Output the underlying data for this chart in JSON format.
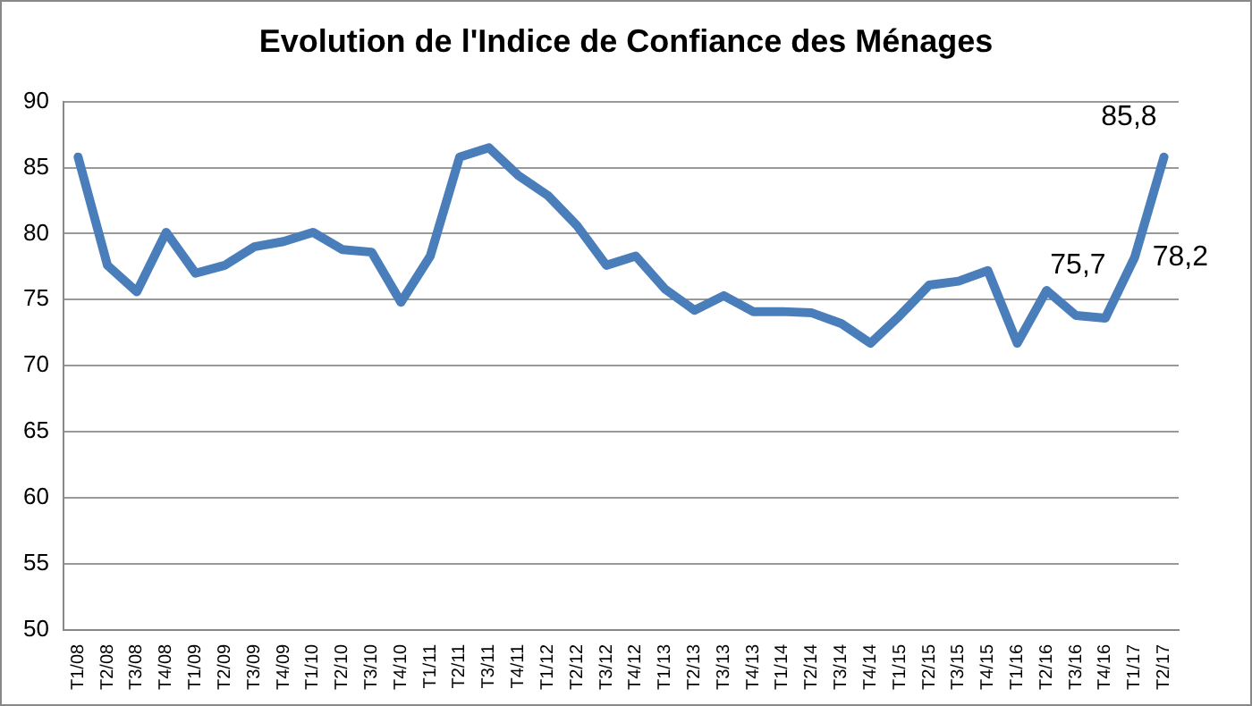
{
  "chart_data": {
    "type": "line",
    "title": "Evolution de l'Indice de Confiance des Ménages",
    "categories": [
      "T1/08",
      "T2/08",
      "T3/08",
      "T4/08",
      "T1/09",
      "T2/09",
      "T3/09",
      "T4/09",
      "T1/10",
      "T2/10",
      "T3/10",
      "T4/10",
      "T1/11",
      "T2/11",
      "T3/11",
      "T4/11",
      "T1/12",
      "T2/12",
      "T3/12",
      "T4/12",
      "T1/13",
      "T2/13",
      "T3/13",
      "T4/13",
      "T1/14",
      "T2/14",
      "T3/14",
      "T4/14",
      "T1/15",
      "T2/15",
      "T3/15",
      "T4/15",
      "T1/16",
      "T2/16",
      "T3/16",
      "T4/16",
      "T1/17",
      "T2/17"
    ],
    "values": [
      85.8,
      77.6,
      75.6,
      80.1,
      77.0,
      77.6,
      79.0,
      79.4,
      80.1,
      78.8,
      78.6,
      74.8,
      78.3,
      85.8,
      86.5,
      84.4,
      82.9,
      80.6,
      77.6,
      78.3,
      75.8,
      74.2,
      75.3,
      74.1,
      74.1,
      74.0,
      73.2,
      71.7,
      73.8,
      76.1,
      76.4,
      77.2,
      71.7,
      75.7,
      73.8,
      73.6,
      78.2,
      85.8
    ],
    "value_labels": [
      null,
      null,
      null,
      null,
      null,
      null,
      null,
      null,
      null,
      null,
      null,
      null,
      null,
      null,
      null,
      null,
      null,
      null,
      null,
      null,
      null,
      null,
      null,
      null,
      null,
      null,
      null,
      null,
      null,
      null,
      null,
      null,
      null,
      "75,7",
      null,
      null,
      "78,2",
      "85,8"
    ],
    "color": "#4a7ebb",
    "ylim": [
      50,
      90
    ],
    "yticks": [
      50,
      55,
      60,
      65,
      70,
      75,
      80,
      85,
      90
    ],
    "grid": "y",
    "legend": false,
    "marker": "none",
    "line_style": "solid"
  }
}
